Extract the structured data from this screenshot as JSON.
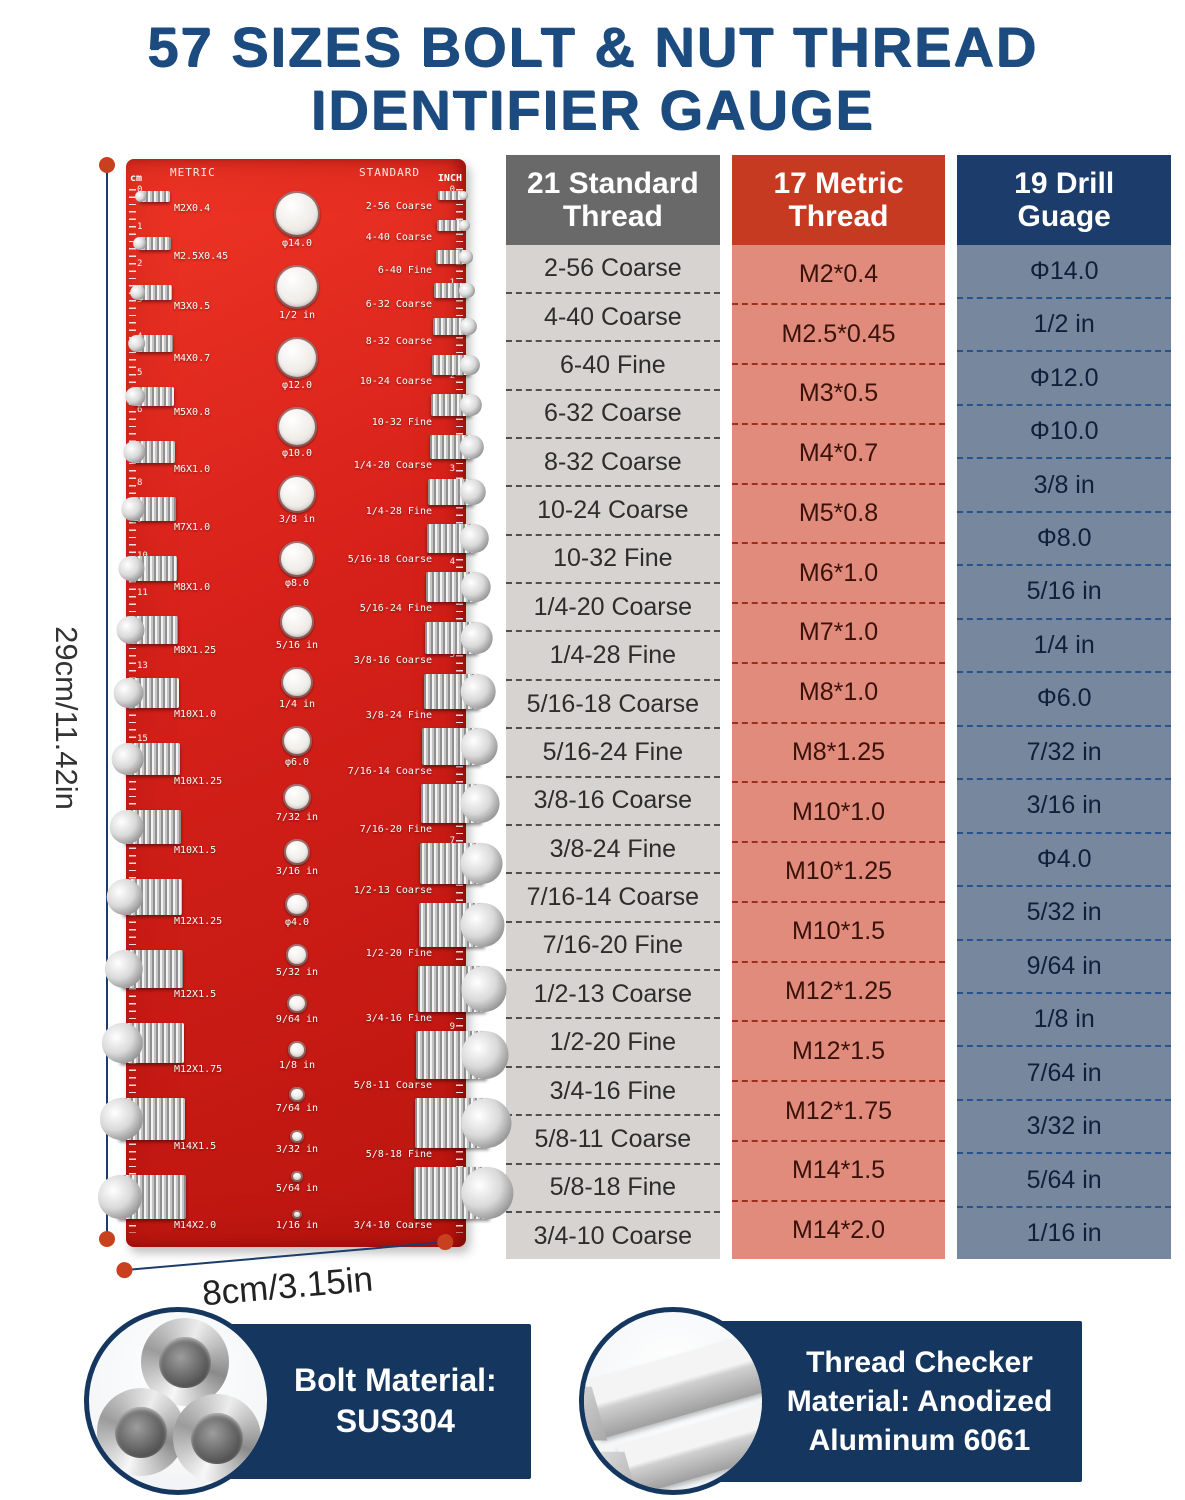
{
  "title": {
    "line1": "57 SIZES BOLT & NUT THREAD",
    "line2": "IDENTIFIER GAUGE"
  },
  "colors": {
    "title_blue": "#1c4b80",
    "board_red": "#d7211a",
    "standard_gray": "#696969",
    "metric_red": "#c53a20",
    "drill_navy": "#1c3d6b",
    "card_navy": "#14365f",
    "dimension_dot_orange": "#c8401d"
  },
  "gauge": {
    "board_top_left": "METRIC",
    "board_top_right": "STANDARD",
    "ruler_left_unit": "cm",
    "ruler_right_unit": "INCH",
    "ruler_cm_numbers": [
      "0",
      "1",
      "2",
      "3",
      "4",
      "5",
      "6",
      "7",
      "8",
      "9",
      "10",
      "11",
      "12",
      "13",
      "14",
      "15"
    ],
    "ruler_inch_numbers": [
      "0",
      "1",
      "2",
      "3",
      "4",
      "5",
      "6",
      "7",
      "8",
      "9",
      "10",
      "11"
    ],
    "metric_stud_labels": [
      "M2X0.4",
      "M2.5X0.45",
      "M3X0.5",
      "M4X0.7",
      "M5X0.8",
      "M6X1.0",
      "M7X1.0",
      "M8X1.0",
      "M8X1.25",
      "M10X1.0",
      "M10X1.25",
      "M10X1.5",
      "M12X1.25",
      "M12X1.5",
      "M12X1.75",
      "M14X1.5",
      "M14X2.0"
    ],
    "hole_labels": [
      "φ14.0",
      "1/2 in",
      "φ12.0",
      "φ10.0",
      "3/8 in",
      "φ8.0",
      "5/16 in",
      "1/4 in",
      "φ6.0",
      "7/32 in",
      "3/16 in",
      "φ4.0",
      "5/32 in",
      "9/64 in",
      "1/8 in",
      "7/64 in",
      "3/32 in",
      "5/64 in",
      "1/16 in"
    ],
    "standard_stud_labels": [
      "2-56 Coarse",
      "4-40 Coarse",
      "6-40 Fine",
      "6-32 Coarse",
      "8-32 Coarse",
      "10-24 Coarse",
      "10-32 Fine",
      "1/4-20 Coarse",
      "1/4-28 Fine",
      "5/16-18 Coarse",
      "5/16-24 Fine",
      "3/8-16 Coarse",
      "3/8-24 Fine",
      "7/16-14 Coarse",
      "7/16-20 Fine",
      "1/2-13 Coarse",
      "1/2-20 Fine",
      "3/4-16 Fine",
      "5/8-11 Coarse",
      "5/8-18 Fine",
      "3/4-10 Coarse"
    ],
    "height_label": "29cm/11.42in",
    "width_label": "8cm/3.15in"
  },
  "tables": [
    {
      "header": "21 Standard Thread",
      "rows": [
        "2-56 Coarse",
        "4-40 Coarse",
        "6-40 Fine",
        "6-32 Coarse",
        "8-32 Coarse",
        "10-24 Coarse",
        "10-32 Fine",
        "1/4-20 Coarse",
        "1/4-28 Fine",
        "5/16-18 Coarse",
        "5/16-24 Fine",
        "3/8-16 Coarse",
        "3/8-24 Fine",
        "7/16-14 Coarse",
        "7/16-20 Fine",
        "1/2-13 Coarse",
        "1/2-20 Fine",
        "3/4-16 Fine",
        "5/8-11 Coarse",
        "5/8-18 Fine",
        "3/4-10 Coarse"
      ]
    },
    {
      "header": "17 Metric Thread",
      "rows": [
        "M2*0.4",
        "M2.5*0.45",
        "M3*0.5",
        "M4*0.7",
        "M5*0.8",
        "M6*1.0",
        "M7*1.0",
        "M8*1.0",
        "M8*1.25",
        "M10*1.0",
        "M10*1.25",
        "M10*1.5",
        "M12*1.25",
        "M12*1.5",
        "M12*1.75",
        "M14*1.5",
        "M14*2.0"
      ]
    },
    {
      "header": "19 Drill Guage",
      "rows": [
        "Φ14.0",
        "1/2 in",
        "Φ12.0",
        "Φ10.0",
        "3/8 in",
        "Φ8.0",
        "5/16 in",
        "1/4 in",
        "Φ6.0",
        "7/32 in",
        "3/16 in",
        "Φ4.0",
        "5/32 in",
        "9/64 in",
        "1/8 in",
        "7/64 in",
        "3/32 in",
        "5/64 in",
        "1/16 in"
      ]
    }
  ],
  "cards": [
    {
      "image": "steel-tubes",
      "text": "Bolt Material:\nSUS304"
    },
    {
      "image": "aluminum-bars",
      "text": "Thread Checker\nMaterial: Anodized\nAluminum 6061"
    }
  ]
}
